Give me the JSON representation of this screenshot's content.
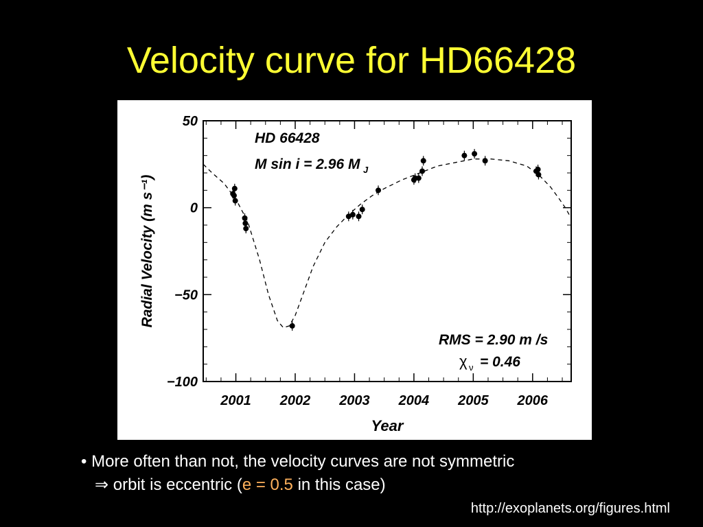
{
  "slide": {
    "title": "Velocity curve for HD66428",
    "bullet_marker": "•",
    "bullet_text": "More often than not, the velocity curves are not symmetric",
    "implies_symbol": "⇒",
    "line2_prefix": "orbit is eccentric (",
    "line2_value": "e = 0.5",
    "line2_suffix": " in this case)",
    "source": "http://exoplanets.org/figures.html",
    "colors": {
      "background": "#000000",
      "title": "#ffff33",
      "text": "#ffffff",
      "accent": "#ffb15c"
    }
  },
  "chart_data": {
    "type": "scatter",
    "xlabel": "Year",
    "ylabel": "Radial Velocity",
    "ylabel_unit": "(m s⁻¹)",
    "xlim": [
      2000.45,
      2006.65
    ],
    "ylim": [
      -100,
      50
    ],
    "x_ticks": [
      2001,
      2002,
      2003,
      2004,
      2005,
      2006
    ],
    "x_tick_labels": [
      "2001",
      "2002",
      "2003",
      "2004",
      "2005",
      "2006"
    ],
    "y_ticks": [
      50,
      0,
      -50,
      -100
    ],
    "y_tick_labels": [
      "50",
      "0",
      "−50",
      "−100"
    ],
    "annotation_name": "HD 66428",
    "annotation_mass": "M sin i = 2.96 M",
    "annotation_mass_sub": "J",
    "annotation_rms": "RMS = 2.90 m /s",
    "annotation_chi": "χ",
    "annotation_chi_sub": "ν",
    "annotation_chi_val": "= 0.46",
    "grid": false,
    "series": [
      {
        "kind": "points",
        "x": [
          2000.95,
          2000.97,
          2000.98,
          2000.99,
          2001.15,
          2001.16,
          2001.17,
          2001.95,
          2002.9,
          2002.97,
          2003.07,
          2003.13,
          2003.4,
          2004.0,
          2004.02,
          2004.08,
          2004.14,
          2004.16,
          2004.85,
          2005.02,
          2005.2,
          2006.06,
          2006.09,
          2006.1
        ],
        "y": [
          8,
          7,
          11,
          4,
          -6,
          -9,
          -12,
          -68,
          -5,
          -4,
          -5,
          -1,
          10,
          16,
          17,
          17,
          21,
          27,
          30,
          31,
          27,
          21,
          22,
          19
        ]
      },
      {
        "kind": "fit",
        "style": "dashed",
        "x": [
          2000.45,
          2000.6,
          2000.8,
          2001.0,
          2001.2,
          2001.4,
          2001.55,
          2001.7,
          2001.8,
          2001.9,
          2002.0,
          2002.15,
          2002.3,
          2002.5,
          2002.7,
          2002.9,
          2003.1,
          2003.3,
          2003.5,
          2003.8,
          2004.1,
          2004.4,
          2004.7,
          2005.0,
          2005.3,
          2005.6,
          2005.9,
          2006.1,
          2006.3,
          2006.45,
          2006.55,
          2006.65
        ],
        "y": [
          25,
          20,
          14,
          5,
          -8,
          -30,
          -50,
          -65,
          -69,
          -68,
          -62,
          -48,
          -34,
          -20,
          -11,
          -4,
          2,
          7,
          11,
          16,
          20,
          24,
          26,
          28,
          28,
          27,
          24,
          19,
          12,
          5,
          0,
          -6
        ]
      }
    ]
  }
}
